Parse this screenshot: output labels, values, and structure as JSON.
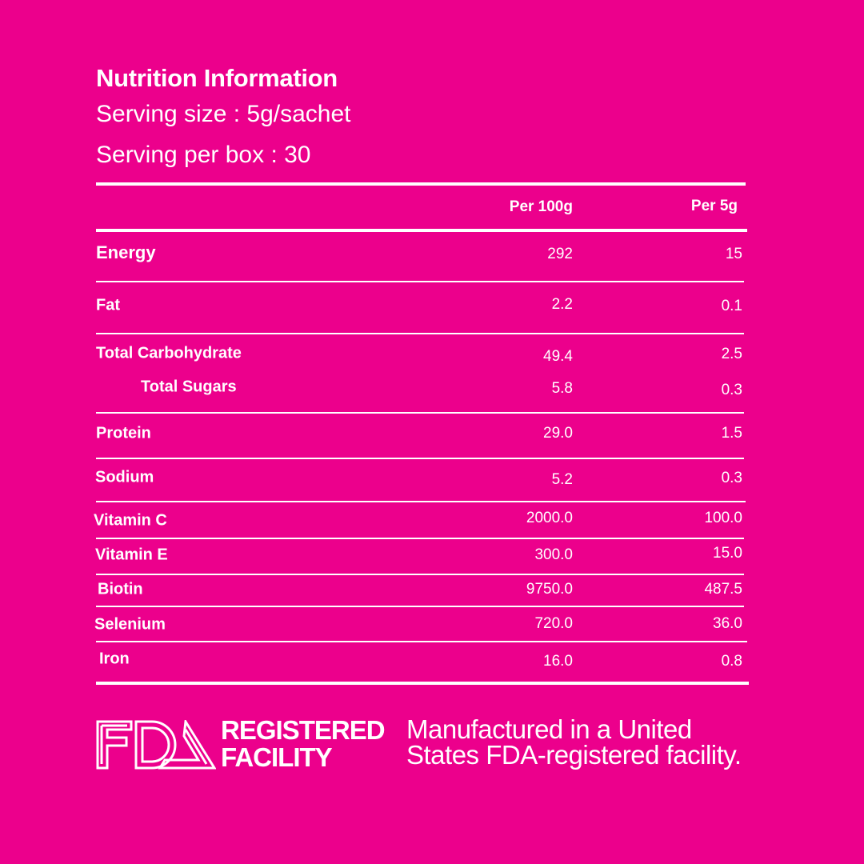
{
  "header": {
    "title": "Nutrition Information",
    "serving_size": "Serving size :  5g/sachet",
    "servings_per_box": "Serving per box : 30"
  },
  "table": {
    "columns": [
      "Per 100g",
      "Per 5g"
    ],
    "rows": [
      {
        "label": "Energy",
        "per100g": "292",
        "per5g": "15"
      },
      {
        "label": "Fat",
        "per100g": "2.2",
        "per5g": "0.1"
      },
      {
        "label": "Total Carbohydrate",
        "per100g": "49.4",
        "per5g": "2.5"
      },
      {
        "label": "Total Sugars",
        "per100g": "5.8",
        "per5g": "0.3"
      },
      {
        "label": "Protein",
        "per100g": "29.0",
        "per5g": "1.5"
      },
      {
        "label": "Sodium",
        "per100g": "5.2",
        "per5g": "0.3"
      },
      {
        "label": "Vitamin C",
        "per100g": "2000.0",
        "per5g": "100.0"
      },
      {
        "label": "Vitamin E",
        "per100g": "300.0",
        "per5g": "15.0"
      },
      {
        "label": "Biotin",
        "per100g": "9750.0",
        "per5g": "487.5"
      },
      {
        "label": "Selenium",
        "per100g": "720.0",
        "per5g": "36.0"
      },
      {
        "label": "Iron",
        "per100g": "16.0",
        "per5g": "0.8"
      }
    ]
  },
  "footer": {
    "logo_text": "FDA",
    "badge_line1": "REGISTERED",
    "badge_line2": "FACILITY",
    "note_line1": "Manufactured in a United",
    "note_line2": "States FDA-registered facility."
  },
  "colors": {
    "background": "#EC008C",
    "text": "#FFFFFF"
  }
}
